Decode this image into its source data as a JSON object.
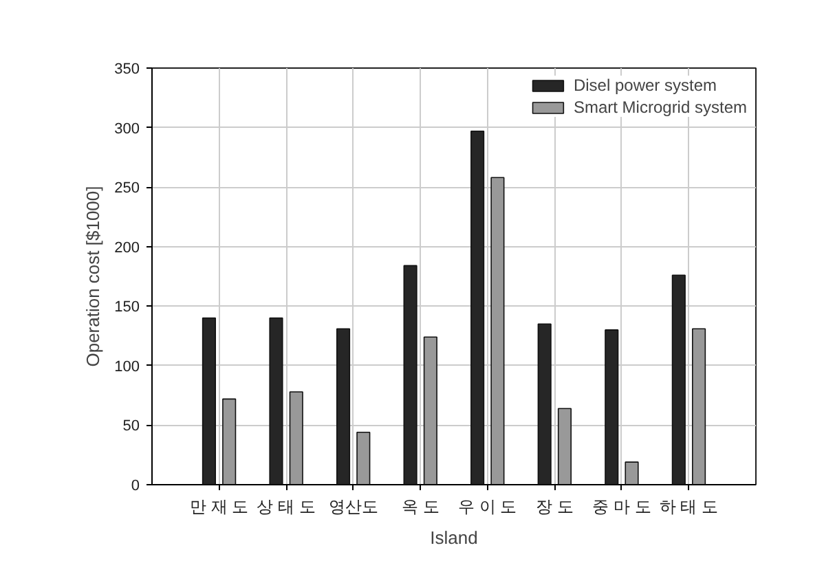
{
  "chart_data": {
    "type": "bar",
    "xlabel": "Island",
    "ylabel": "Operation cost [$1000]",
    "categories": [
      "만 재 도",
      "상 태 도",
      "영산도",
      "옥 도",
      "우 이 도",
      "장 도",
      "중 마 도",
      "하 태 도"
    ],
    "series": [
      {
        "name": "Disel power system",
        "color": "#262626",
        "values": [
          140,
          140,
          131,
          184,
          297,
          135,
          130,
          176
        ]
      },
      {
        "name": "Smart Microgrid system",
        "color": "#999999",
        "values": [
          72,
          78,
          44,
          124,
          258,
          64,
          19,
          131
        ]
      }
    ],
    "ylim": [
      0,
      350
    ],
    "yticks": [
      0,
      50,
      100,
      150,
      200,
      250,
      300,
      350
    ],
    "grid": true,
    "legend": "top right"
  }
}
